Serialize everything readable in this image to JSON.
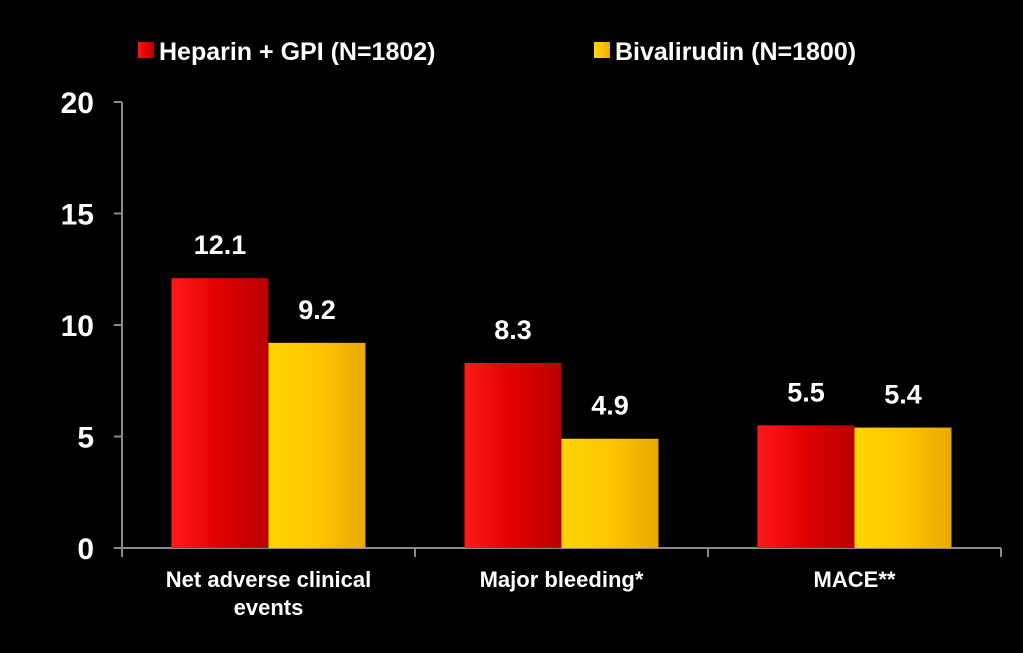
{
  "chart_data": {
    "type": "bar",
    "title": "",
    "xlabel": "",
    "ylabel": "",
    "ylim": [
      0,
      20
    ],
    "yticks": [
      0,
      5,
      10,
      15,
      20
    ],
    "grid": false,
    "legend_position": "top",
    "categories": [
      [
        "Net adverse clinical",
        "events"
      ],
      [
        "Major bleeding*"
      ],
      [
        "MACE**"
      ]
    ],
    "series": [
      {
        "name": "Heparin + GPI (N=1802)",
        "color": "#ee0000",
        "values": [
          12.1,
          8.3,
          5.5
        ],
        "labels": [
          "12.1",
          "8.3",
          "5.5"
        ]
      },
      {
        "name": "Bivalirudin (N=1800)",
        "color": "#ffcc00",
        "values": [
          9.2,
          4.9,
          5.4
        ],
        "labels": [
          "9.2",
          "4.9",
          "5.4"
        ]
      }
    ]
  }
}
